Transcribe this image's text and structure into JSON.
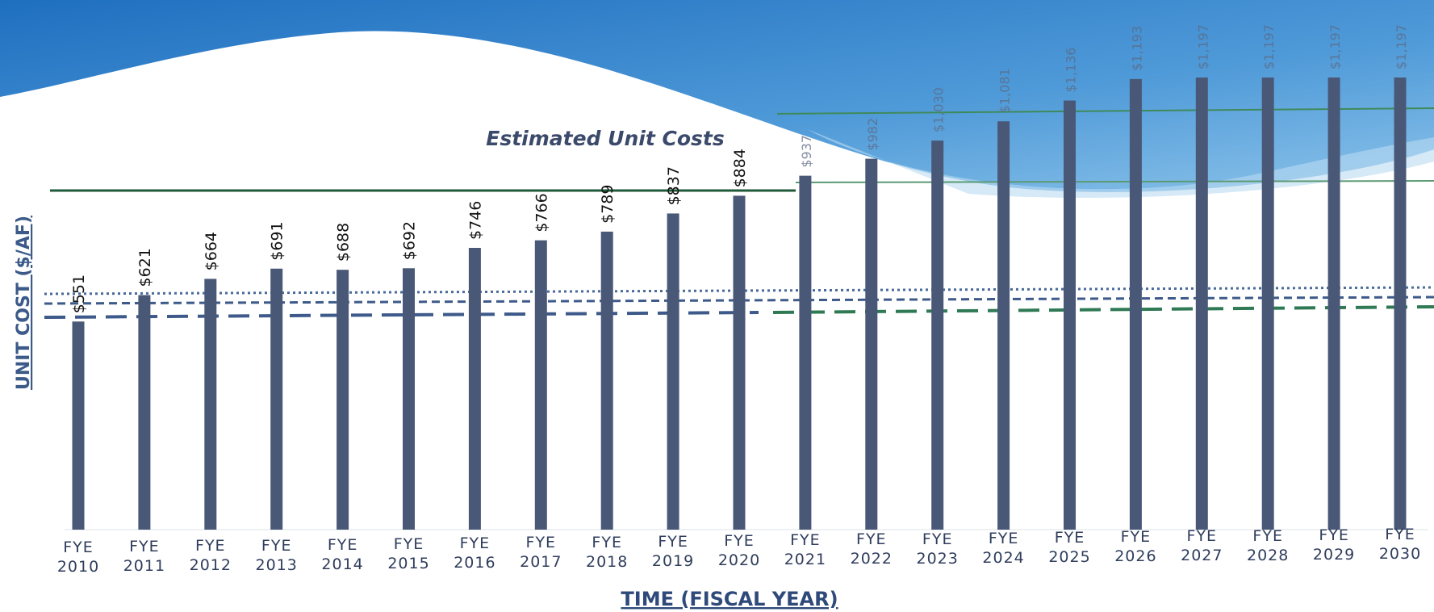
{
  "chart_data": {
    "type": "bar",
    "title": "Estimated Unit Costs",
    "y_label": "UNIT COST ($/AF)",
    "x_label": "TIME (FISCAL YEAR)",
    "categories": [
      "FYE 2010",
      "FYE 2011",
      "FYE 2012",
      "FYE 2013",
      "FYE 2014",
      "FYE 2015",
      "FYE 2016",
      "FYE 2017",
      "FYE 2018",
      "FYE 2019",
      "FYE 2020",
      "FYE 2021",
      "FYE 2022",
      "FYE 2023",
      "FYE 2024",
      "FYE 2025",
      "FYE 2026",
      "FYE 2027",
      "FYE 2028",
      "FYE 2029",
      "FYE 2030"
    ],
    "values": [
      551,
      621,
      664,
      691,
      688,
      692,
      746,
      766,
      789,
      837,
      884,
      937,
      982,
      1030,
      1081,
      1136,
      1193,
      1197,
      1197,
      1197,
      1197
    ],
    "value_labels": [
      "$551",
      "$621",
      "$664",
      "$691",
      "$688",
      "$692",
      "$746",
      "$766",
      "$789",
      "$837",
      "$884",
      "$937",
      "$982",
      "$1,030",
      "$1,081",
      "$1,136",
      "$1,193",
      "$1,197",
      "$1,197",
      "$1,197",
      "$1,197"
    ],
    "color": "#4a5878"
  }
}
